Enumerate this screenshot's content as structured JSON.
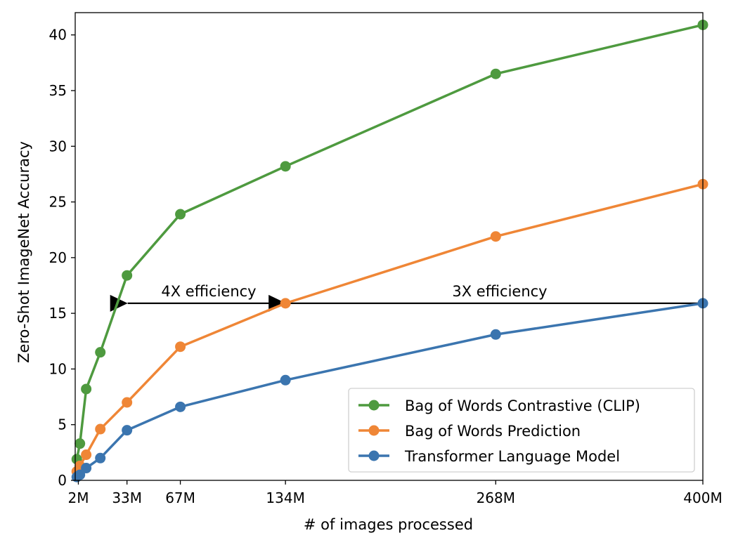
{
  "chart_data": {
    "type": "line",
    "title": "",
    "xlabel": "# of images processed",
    "ylabel": "Zero-Shot ImageNet Accuracy",
    "xlim": [
      0,
      400
    ],
    "ylim": [
      0,
      42
    ],
    "grid": false,
    "legend_position": "lower-right",
    "x_ticks": [
      {
        "value": 2,
        "label": "2M"
      },
      {
        "value": 33,
        "label": "33M"
      },
      {
        "value": 67,
        "label": "67M"
      },
      {
        "value": 134,
        "label": "134M"
      },
      {
        "value": 268,
        "label": "268M"
      },
      {
        "value": 400,
        "label": "400M"
      }
    ],
    "y_ticks": [
      {
        "value": 0,
        "label": "0"
      },
      {
        "value": 5,
        "label": "5"
      },
      {
        "value": 10,
        "label": "10"
      },
      {
        "value": 15,
        "label": "15"
      },
      {
        "value": 20,
        "label": "20"
      },
      {
        "value": 25,
        "label": "25"
      },
      {
        "value": 30,
        "label": "30"
      },
      {
        "value": 35,
        "label": "35"
      },
      {
        "value": 40,
        "label": "40"
      }
    ],
    "series": [
      {
        "name": "Bag of Words Contrastive (CLIP)",
        "color": "#4e9a3f",
        "x": [
          1,
          3,
          7,
          16,
          33,
          67,
          134,
          268,
          400
        ],
        "y": [
          1.9,
          3.3,
          8.2,
          11.5,
          18.4,
          23.9,
          28.2,
          36.5,
          40.9
        ]
      },
      {
        "name": "Bag of Words Prediction",
        "color": "#ef8636",
        "x": [
          1,
          3,
          7,
          16,
          33,
          67,
          134,
          268,
          400
        ],
        "y": [
          0.8,
          1.3,
          2.3,
          4.6,
          7.0,
          12.0,
          15.9,
          21.9,
          26.6
        ]
      },
      {
        "name": "Transformer Language Model",
        "color": "#3b75af",
        "x": [
          1,
          3,
          7,
          16,
          33,
          67,
          134,
          268,
          400
        ],
        "y": [
          0.3,
          0.5,
          1.1,
          2.0,
          4.5,
          6.6,
          9.0,
          13.1,
          15.9
        ]
      }
    ],
    "annotations": [
      {
        "text": "4X efficiency",
        "arrow_from": [
          134,
          15.9
        ],
        "arrow_to": [
          33,
          15.9
        ]
      },
      {
        "text": "3X efficiency",
        "arrow_from": [
          400,
          15.9
        ],
        "arrow_to": [
          134,
          15.9
        ]
      }
    ]
  }
}
